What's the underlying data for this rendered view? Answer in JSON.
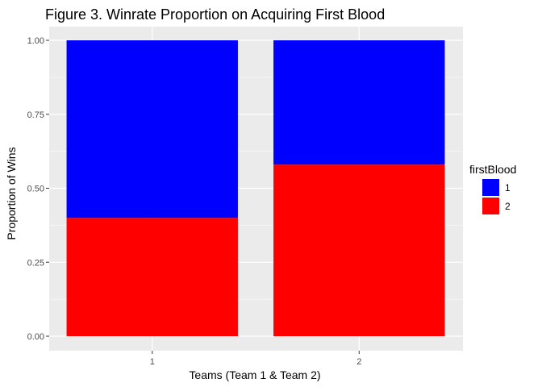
{
  "chart_data": {
    "type": "bar",
    "stacked": true,
    "title": "Figure 3. Winrate Proportion on Acquiring First Blood",
    "xlabel": "Teams (Team 1 & Team 2)",
    "ylabel": "Proportion of Wins",
    "categories": [
      "1",
      "2"
    ],
    "ylim": [
      0,
      1
    ],
    "yticks": [
      "0.00",
      "0.25",
      "0.50",
      "0.75",
      "1.00"
    ],
    "ytick_values": [
      0,
      0.25,
      0.5,
      0.75,
      1.0
    ],
    "grid": true,
    "legend": {
      "title": "firstBlood",
      "placement": "right"
    },
    "series": [
      {
        "name": "1",
        "color": "#0000ff",
        "values": [
          0.6,
          0.42
        ]
      },
      {
        "name": "2",
        "color": "#ff0000",
        "values": [
          0.4,
          0.58
        ]
      }
    ],
    "stack_order_bottom_to_top": [
      "2",
      "1"
    ],
    "panel_background": "#ebebeb"
  }
}
